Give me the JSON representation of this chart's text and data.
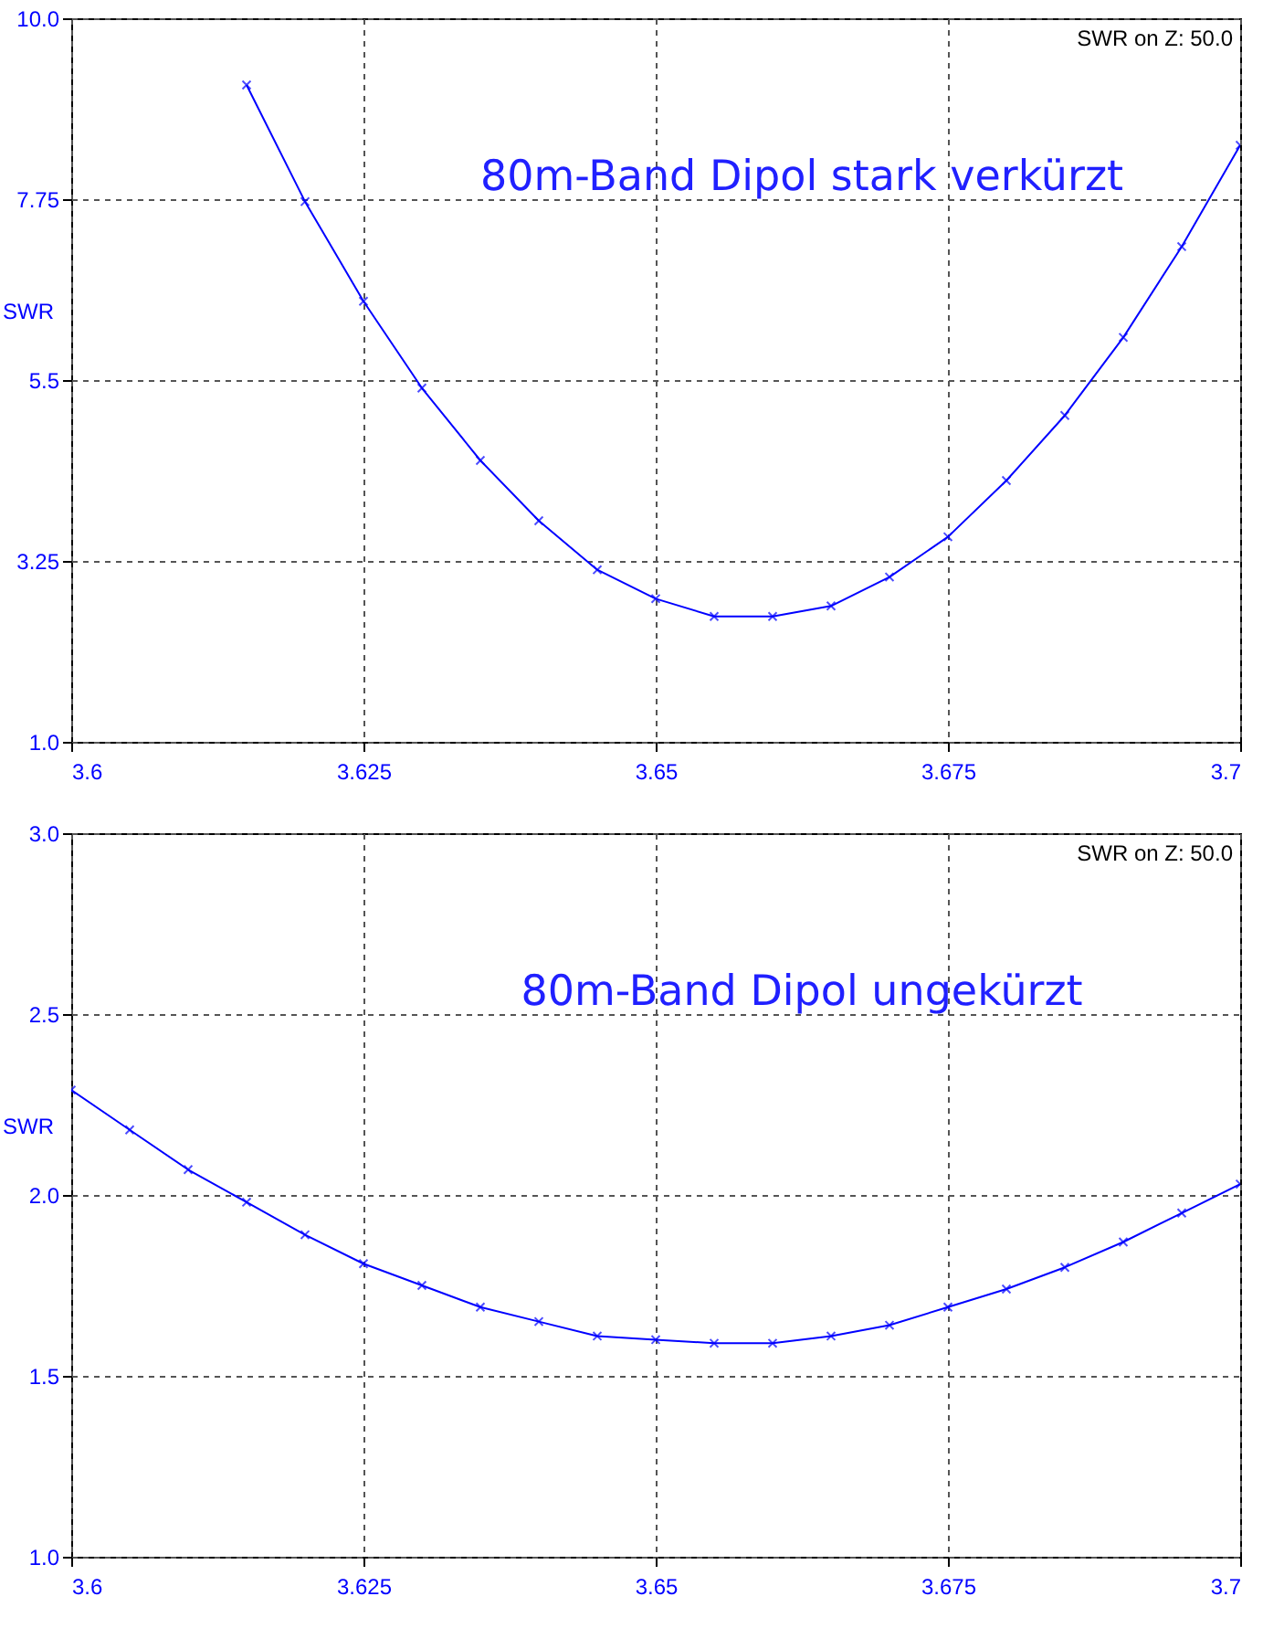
{
  "chart_data": [
    {
      "type": "line",
      "title": "80m-Band Dipol stark verkürzt",
      "ylabel": "SWR",
      "annotations": [
        "SWR on Z: 50.0"
      ],
      "x": [
        3.615,
        3.62,
        3.625,
        3.63,
        3.635,
        3.64,
        3.645,
        3.65,
        3.655,
        3.66,
        3.665,
        3.67,
        3.675,
        3.68,
        3.685,
        3.69,
        3.695,
        3.7
      ],
      "series": [
        {
          "color": "#0000ff",
          "values": [
            9.17,
            7.72,
            6.48,
            5.4,
            4.5,
            3.75,
            3.14,
            2.78,
            2.56,
            2.56,
            2.69,
            3.05,
            3.55,
            4.25,
            5.06,
            6.03,
            7.16,
            8.42
          ]
        }
      ],
      "xlim": [
        3.6,
        3.7
      ],
      "xticks": [
        3.6,
        3.625,
        3.65,
        3.675,
        3.7
      ],
      "ylim": [
        1,
        10
      ],
      "yticks": [
        {
          "value": 1,
          "label": "1.0"
        },
        3.25,
        5.5,
        7.75,
        {
          "value": 10,
          "label": "10.0"
        }
      ],
      "grid": true,
      "marker": "cross"
    },
    {
      "type": "line",
      "title": "80m-Band Dipol ungekürzt",
      "ylabel": "SWR",
      "annotations": [
        "SWR on Z: 50.0"
      ],
      "x": [
        3.6,
        3.605,
        3.61,
        3.615,
        3.62,
        3.625,
        3.63,
        3.635,
        3.64,
        3.645,
        3.65,
        3.655,
        3.66,
        3.665,
        3.67,
        3.675,
        3.68,
        3.685,
        3.69,
        3.695,
        3.7
      ],
      "series": [
        {
          "color": "#0000ff",
          "values": [
            2.29,
            2.18,
            2.07,
            1.98,
            1.89,
            1.81,
            1.75,
            1.69,
            1.65,
            1.61,
            1.6,
            1.59,
            1.59,
            1.61,
            1.64,
            1.69,
            1.74,
            1.8,
            1.87,
            1.95,
            2.03
          ]
        }
      ],
      "xlim": [
        3.6,
        3.7
      ],
      "xticks": [
        3.6,
        3.625,
        3.65,
        3.675,
        3.7
      ],
      "ylim": [
        1,
        3
      ],
      "yticks": [
        {
          "value": 1,
          "label": "1.0"
        },
        {
          "value": 1.5,
          "label": "1.5"
        },
        {
          "value": 2,
          "label": "2.0"
        },
        {
          "value": 2.5,
          "label": "2.5"
        },
        {
          "value": 3,
          "label": "3.0"
        }
      ],
      "grid": true,
      "marker": "cross"
    }
  ]
}
